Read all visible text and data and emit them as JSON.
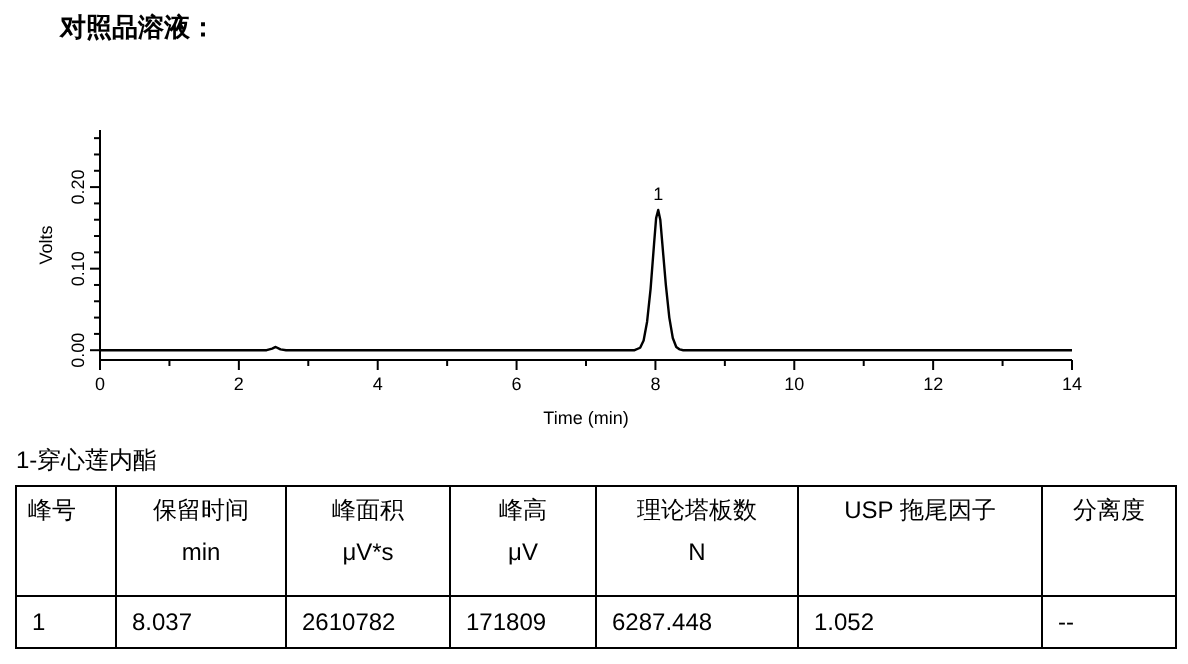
{
  "chart_data": {
    "type": "line",
    "title": "对照品溶液：",
    "xlabel": "Time (min)",
    "ylabel": "Volts",
    "xlim": [
      0,
      14
    ],
    "xticks": [
      0,
      {
        "value": 1,
        "label": null
      },
      2,
      {
        "value": 3,
        "label": null
      },
      4,
      {
        "value": 5,
        "label": null
      },
      6,
      {
        "value": 7,
        "label": null
      },
      8,
      {
        "value": 9,
        "label": null
      },
      10,
      {
        "value": 11,
        "label": null
      },
      12,
      {
        "value": 13,
        "label": null
      },
      14
    ],
    "ylim": [
      -0.012,
      0.27
    ],
    "yticks": [
      {
        "value": 0,
        "label": "0.00"
      },
      {
        "value": 0.02,
        "label": null
      },
      {
        "value": 0.04,
        "label": null
      },
      {
        "value": 0.06,
        "label": null
      },
      {
        "value": 0.08,
        "label": null
      },
      {
        "value": 0.1,
        "label": "0.10"
      },
      {
        "value": 0.12,
        "label": null
      },
      {
        "value": 0.14,
        "label": null
      },
      {
        "value": 0.16,
        "label": null
      },
      {
        "value": 0.18,
        "label": null
      },
      {
        "value": 0.2,
        "label": "0.20"
      },
      {
        "value": 0.22,
        "label": null
      },
      {
        "value": 0.24,
        "label": null
      },
      {
        "value": 0.26,
        "label": null
      }
    ],
    "series": [
      {
        "color": "#000000",
        "x": [
          0,
          2.4,
          2.48,
          2.53,
          2.6,
          2.68,
          7.7,
          7.78,
          7.83,
          7.88,
          7.93,
          7.98,
          8.01,
          8.04,
          8.07,
          8.1,
          8.15,
          8.2,
          8.25,
          8.3,
          8.35,
          8.4,
          14
        ],
        "values": [
          0,
          0,
          0.002,
          0.004,
          0.001,
          0,
          0,
          0.003,
          0.012,
          0.035,
          0.075,
          0.13,
          0.162,
          0.172,
          0.16,
          0.13,
          0.08,
          0.04,
          0.015,
          0.004,
          0.001,
          0,
          0
        ]
      }
    ],
    "marker": "none",
    "line_style": "solid",
    "grid": false,
    "annotations": [
      {
        "text": "1",
        "x": 8.04,
        "y": 0.172
      },
      "1-穿心莲内酯",
      "峰号",
      "保留时间\nmin",
      "峰面积\nμV*s",
      "峰高\nμV",
      "理论塔板数\nN",
      "USP 拖尾因子",
      "分离度",
      "1",
      "8.037",
      "2610782",
      "171809",
      "6287.448",
      "1.052",
      "--"
    ]
  }
}
